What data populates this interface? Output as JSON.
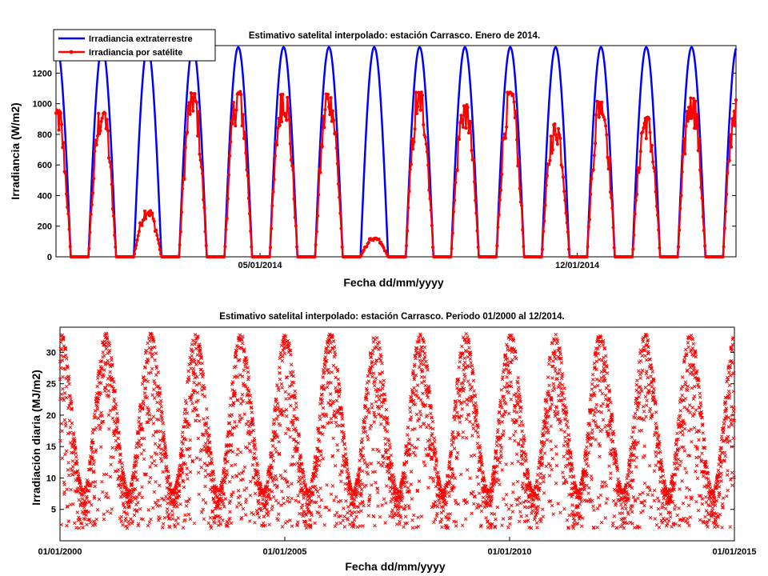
{
  "chart_data": [
    {
      "type": "line",
      "title": "Estimativo satelital interpolado: estación Carrasco. Enero de 2014.",
      "xlabel": "Fecha dd/mm/yyyy",
      "ylabel": "Irradiancia (W/m2)",
      "xlim": [
        0.5,
        15.5
      ],
      "ylim": [
        0,
        1380
      ],
      "yticks": [
        0,
        200,
        400,
        600,
        800,
        1000,
        1200
      ],
      "xticks": [
        {
          "x": 5,
          "label": "05/01/2014"
        },
        {
          "x": 12,
          "label": "12/01/2014"
        }
      ],
      "legend_position": "top-left",
      "series": [
        {
          "name": "Irradiancia extraterrestre",
          "color": "#0000ff",
          "marker": "none",
          "sunrise_hours": 5.2,
          "sunset_hours": 19.8,
          "daily_peak": 1370
        },
        {
          "name": "Irradiancia por satélite",
          "color": "#ff0000",
          "marker": "dot",
          "daily_peak": [
            940,
            300,
            1050,
            1060,
            1060,
            1050,
            120,
            1060,
            980,
            1060,
            860,
            1020,
            900,
            1040,
            1020
          ]
        }
      ]
    },
    {
      "type": "scatter",
      "title": "Estimativo satelital interpolado: estación Carrasco. Periodo 01/2000 al 12/2014.",
      "xlabel": "Fecha dd/mm/yyyy",
      "ylabel": "Irradiación diaria (MJ/m2)",
      "xlim": [
        "01/01/2000",
        "01/01/2015"
      ],
      "ylim": [
        0,
        34
      ],
      "yticks": [
        5,
        10,
        15,
        20,
        25,
        30
      ],
      "xticks": [
        "01/01/2000",
        "01/01/2005",
        "01/01/2010",
        "01/01/2015"
      ],
      "series": [
        {
          "name": "",
          "color": "#ff0000",
          "marker": "x",
          "seasonal_min": 2,
          "seasonal_max": 33,
          "summer_peak_month": "January",
          "winter_min_month": "June"
        }
      ]
    }
  ]
}
